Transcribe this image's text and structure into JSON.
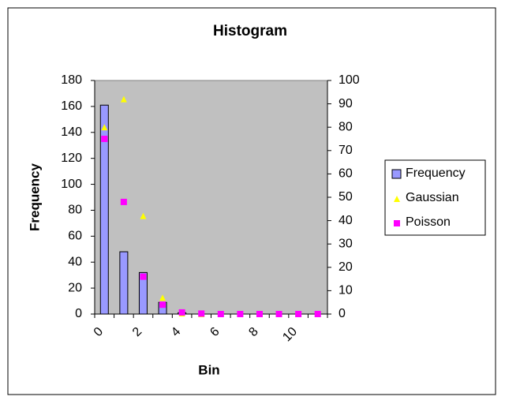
{
  "chart_data": {
    "type": "bar",
    "title": "Histogram",
    "x_label": "Bin",
    "y_label": "Frequency",
    "categories": [
      "0",
      null,
      "2",
      null,
      "4",
      null,
      "6",
      null,
      "8",
      null,
      "10",
      null
    ],
    "series": [
      {
        "name": "Frequency",
        "color": "#9999ff",
        "values": [
          161,
          48,
          32,
          9,
          1,
          0,
          0,
          0,
          0,
          0,
          0,
          0
        ]
      },
      {
        "name": "Gaussian",
        "color": "#ffff00",
        "axis": "y2",
        "marker": "triangle",
        "values": [
          80,
          92,
          42,
          7,
          0.3,
          0,
          0,
          0,
          0,
          0,
          0,
          0
        ]
      },
      {
        "name": "Poisson",
        "color": "#ff00ff",
        "axis": "y2",
        "marker": "square",
        "values": [
          75,
          48,
          16,
          4,
          0.7,
          0.2,
          0,
          0,
          0,
          0,
          0,
          0
        ]
      }
    ],
    "ylim": [
      0,
      180
    ],
    "yticks": [
      0,
      20,
      40,
      60,
      80,
      100,
      120,
      140,
      160,
      180
    ],
    "y2lim": [
      0,
      100
    ],
    "y2ticks": [
      0,
      10,
      20,
      30,
      40,
      50,
      60,
      70,
      80,
      90,
      100
    ],
    "plot_background": "#c0c0c0",
    "legend": "right"
  }
}
